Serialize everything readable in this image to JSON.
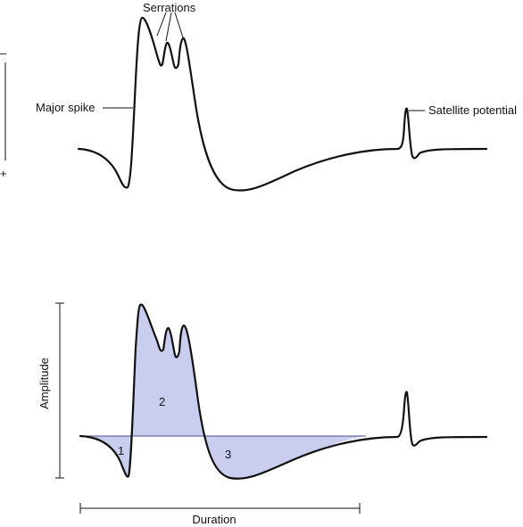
{
  "top_panel": {
    "polarity_minus": "–",
    "polarity_plus": "+",
    "labels": {
      "serrations": "Serrations",
      "major_spike": "Major spike",
      "satellite_potential": "Satellite potential"
    }
  },
  "bottom_panel": {
    "amplitude_label": "Amplitude",
    "duration_label": "Duration",
    "area_labels": [
      "1",
      "2",
      "3"
    ]
  },
  "colors": {
    "trace": "#111111",
    "area_fill": "#c9cdee",
    "baseline": "#4a4a8a"
  }
}
